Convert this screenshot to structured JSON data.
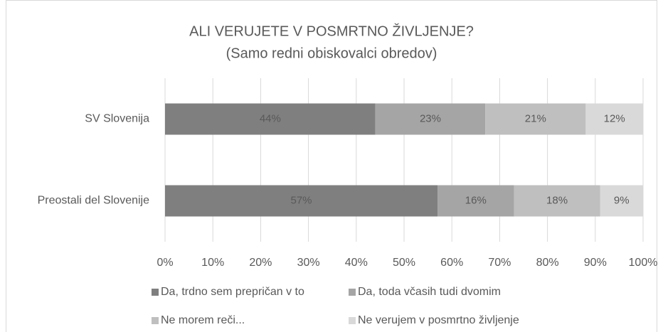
{
  "chart_data": {
    "type": "stacked-bar-horizontal",
    "title": "ALI VERUJETE V POSMRTNO ŽIVLJENJE?",
    "subtitle": "(Samo redni obiskovalci obredov)",
    "categories": [
      "SV Slovenija",
      "Preostali del Slovenije"
    ],
    "series": [
      {
        "name": "Da, trdno sem prepričan v to",
        "color": "#7f7f7f",
        "values": [
          44,
          57
        ],
        "value_labels": [
          "44%",
          "57%"
        ]
      },
      {
        "name": "Da, toda včasih tudi dvomim",
        "color": "#a5a5a5",
        "values": [
          23,
          16
        ],
        "value_labels": [
          "23%",
          "16%"
        ]
      },
      {
        "name": "Ne morem reči...",
        "color": "#bfbfbf",
        "values": [
          21,
          18
        ],
        "value_labels": [
          "21%",
          "18%"
        ]
      },
      {
        "name": "Ne verujem v posmrtno življenje",
        "color": "#d9d9d9",
        "values": [
          12,
          9
        ],
        "value_labels": [
          "12%",
          "9%"
        ]
      }
    ],
    "xlim": [
      0,
      100
    ],
    "xticks": [
      {
        "value": 0,
        "label": "0%"
      },
      {
        "value": 10,
        "label": "10%"
      },
      {
        "value": 20,
        "label": "20%"
      },
      {
        "value": 30,
        "label": "30%"
      },
      {
        "value": 40,
        "label": "40%"
      },
      {
        "value": 50,
        "label": "50%"
      },
      {
        "value": 60,
        "label": "60%"
      },
      {
        "value": 70,
        "label": "70%"
      },
      {
        "value": 80,
        "label": "80%"
      },
      {
        "value": 90,
        "label": "90%"
      },
      {
        "value": 100,
        "label": "100%"
      }
    ],
    "grid": true,
    "legend": "bottom"
  }
}
